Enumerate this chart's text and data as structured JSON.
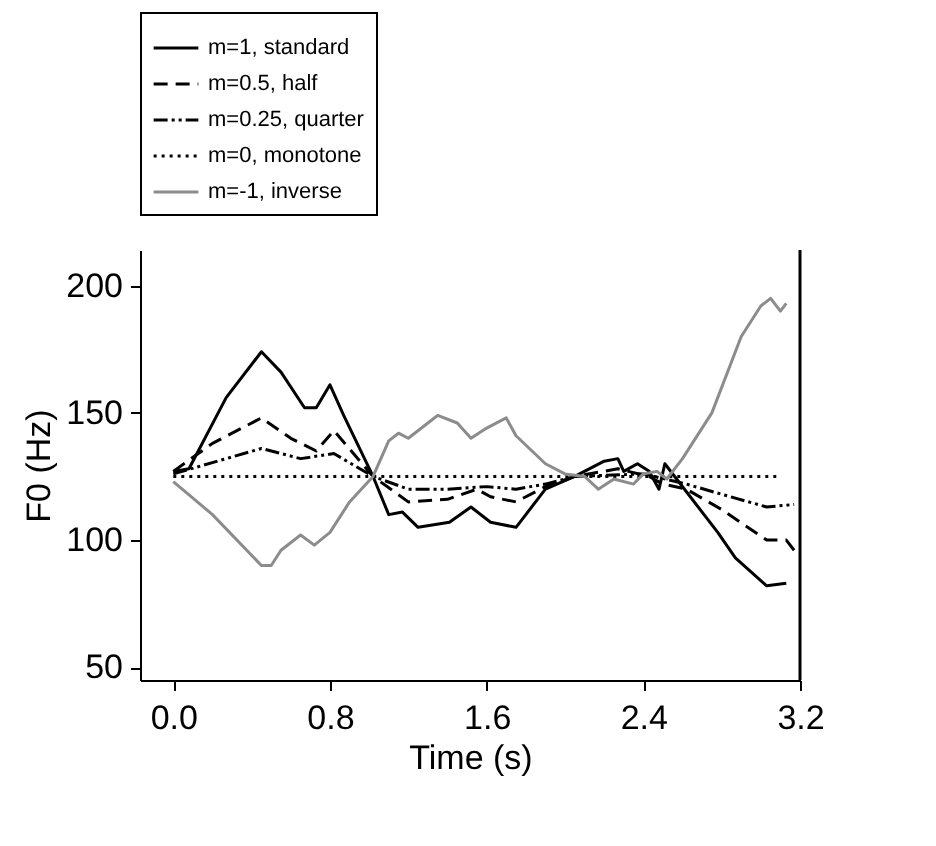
{
  "chart_data": {
    "type": "line",
    "xlabel": "Time (s)",
    "ylabel": "F0 (Hz)",
    "xlim": [
      -0.17,
      3.2
    ],
    "ylim": [
      45,
      214
    ],
    "xticks": [
      {
        "value": 0,
        "label": "0.0"
      },
      0.8,
      1.6,
      2.4,
      3.2
    ],
    "yticks": [
      50,
      100,
      150,
      200
    ],
    "grid": false,
    "legend": "top",
    "marker": "none",
    "series": [
      {
        "name": "m=1, standard",
        "color": "#000000",
        "line_style": "solid",
        "x": [
          0,
          0.08,
          0.27,
          0.45,
          0.55,
          0.67,
          0.73,
          0.8,
          0.87,
          1.02,
          1.1,
          1.17,
          1.25,
          1.41,
          1.52,
          1.62,
          1.75,
          1.9,
          2.05,
          2.2,
          2.27,
          2.3,
          2.37,
          2.43,
          2.48,
          2.51,
          2.62,
          2.78,
          2.87,
          3.03,
          3.13
        ],
        "values": [
          127,
          128,
          156,
          174,
          166,
          152,
          152,
          161,
          149,
          125,
          110,
          111,
          105,
          107,
          113,
          107,
          105,
          120,
          125,
          131,
          132,
          127,
          130,
          127,
          120,
          130,
          119,
          103,
          93,
          82,
          83
        ]
      },
      {
        "name": "m=0.5, half",
        "color": "#000000",
        "line_style": "dashed",
        "x": [
          0,
          0.2,
          0.45,
          0.6,
          0.73,
          0.82,
          1.02,
          1.2,
          1.4,
          1.55,
          1.62,
          1.75,
          1.9,
          2.05,
          2.27,
          2.43,
          2.5,
          2.62,
          2.8,
          3.03,
          3.13,
          3.17
        ],
        "values": [
          127,
          138,
          148,
          140,
          135,
          143,
          125,
          115,
          116,
          120,
          117,
          115,
          121,
          125,
          128,
          125,
          122,
          120,
          112,
          100,
          100,
          96
        ]
      },
      {
        "name": "m=0.25, quarter",
        "color": "#000000",
        "line_style": "dashdot",
        "x": [
          0,
          0.45,
          0.65,
          0.82,
          1.02,
          1.2,
          1.4,
          1.6,
          1.75,
          1.9,
          2.05,
          2.4,
          2.62,
          2.8,
          3.03,
          3.17
        ],
        "values": [
          126,
          136,
          132,
          134,
          125,
          120,
          120,
          121,
          120,
          122,
          125,
          126,
          122,
          118,
          113,
          114
        ]
      },
      {
        "name": "m=0, monotone",
        "color": "#000000",
        "line_style": "dotted",
        "x": [
          0,
          3.08
        ],
        "values": [
          125,
          125
        ]
      },
      {
        "name": "m=-1, inverse",
        "color": "#8c8c8c",
        "line_style": "solid",
        "x": [
          0,
          0.2,
          0.45,
          0.5,
          0.55,
          0.65,
          0.72,
          0.8,
          0.9,
          1.02,
          1.1,
          1.15,
          1.2,
          1.3,
          1.35,
          1.45,
          1.52,
          1.6,
          1.7,
          1.75,
          1.9,
          2.0,
          2.1,
          2.17,
          2.25,
          2.35,
          2.4,
          2.47,
          2.52,
          2.6,
          2.75,
          2.9,
          3.0,
          3.05,
          3.1,
          3.13
        ],
        "values": [
          123,
          110,
          90,
          90,
          96,
          102,
          98,
          103,
          115,
          125,
          139,
          142,
          140,
          146,
          149,
          146,
          140,
          144,
          148,
          141,
          130,
          126,
          125,
          120,
          124,
          122,
          126,
          127,
          124,
          132,
          150,
          180,
          192,
          195,
          190,
          193
        ]
      }
    ]
  }
}
